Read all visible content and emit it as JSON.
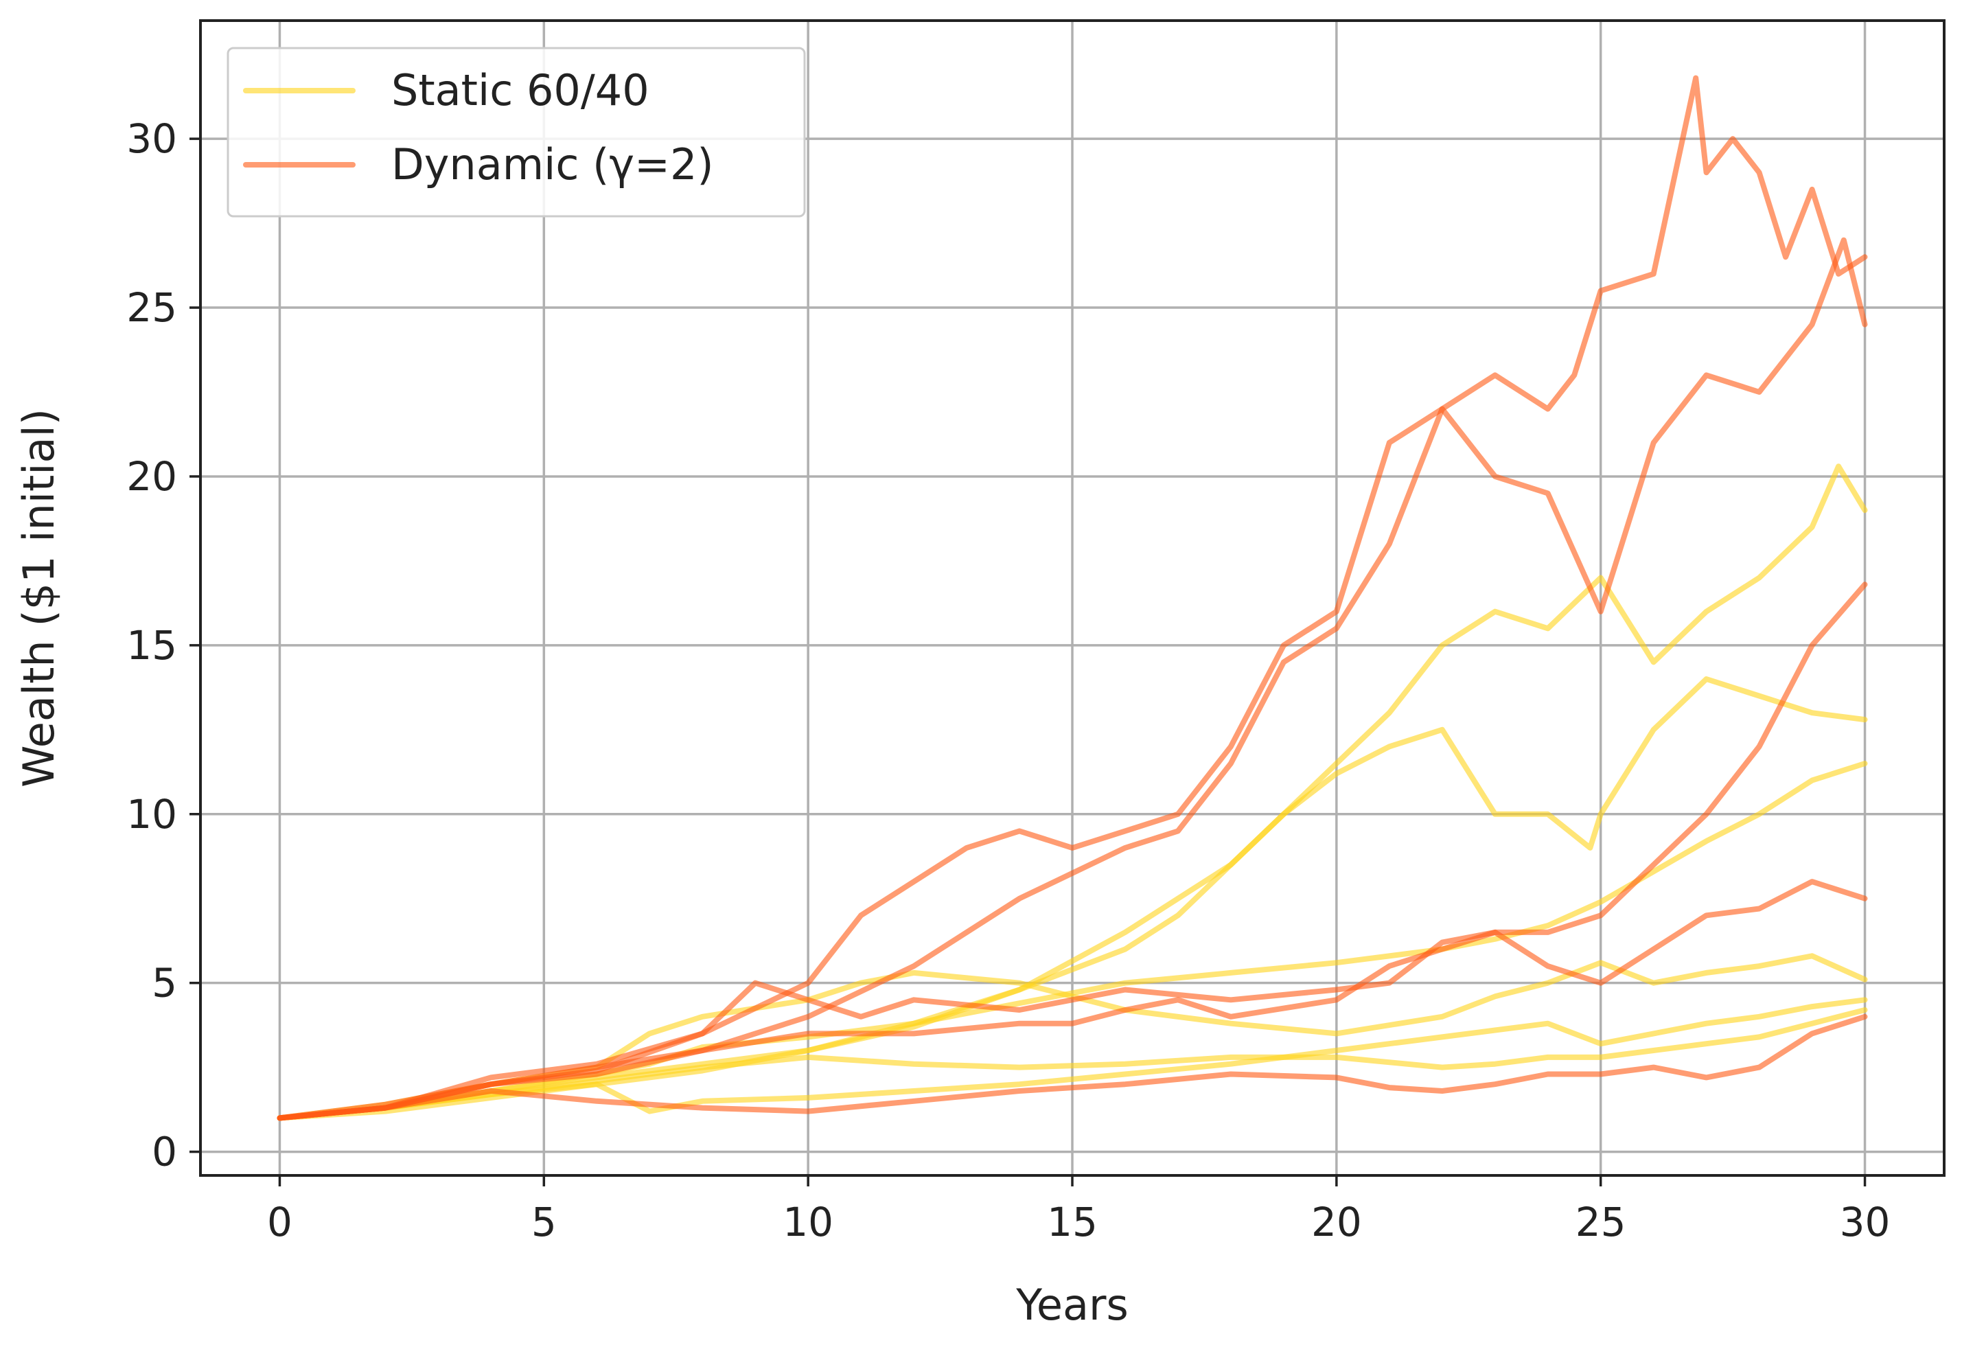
{
  "chart_data": {
    "type": "line",
    "title": "",
    "xlabel": "Years",
    "ylabel": "Wealth ($1 initial)",
    "xlim": [
      -1.5,
      31.5
    ],
    "ylim": [
      -0.7,
      33.5
    ],
    "xticks": [
      0,
      5,
      10,
      15,
      20,
      25,
      30
    ],
    "yticks": [
      0,
      5,
      10,
      15,
      20,
      25,
      30
    ],
    "grid": true,
    "legend_position": "top-left",
    "legend": [
      {
        "label": "Static 60/40",
        "color": "#ffd31a"
      },
      {
        "label": "Dynamic (γ=2)",
        "color": "#ff5a14"
      }
    ],
    "series": [
      {
        "group": 0,
        "color": "#ffd31a",
        "x": [
          0,
          2,
          4,
          6,
          7,
          8,
          10,
          12,
          14,
          16,
          18,
          20,
          22,
          23,
          24,
          25,
          26,
          27,
          28,
          29,
          30
        ],
        "y": [
          1,
          1.3,
          1.8,
          2.3,
          2.6,
          3.1,
          3.4,
          3.8,
          4.4,
          5.0,
          5.3,
          5.6,
          6.0,
          6.3,
          6.7,
          7.4,
          8.3,
          9.2,
          10.0,
          11.0,
          11.5
        ]
      },
      {
        "group": 0,
        "color": "#ffd31a",
        "x": [
          0,
          2,
          4,
          6,
          8,
          10,
          12,
          14,
          16,
          17,
          18,
          19,
          20,
          21,
          22,
          23,
          24,
          24.8,
          25,
          26,
          27,
          28,
          29,
          30
        ],
        "y": [
          1,
          1.2,
          1.6,
          2.0,
          2.4,
          3.0,
          3.8,
          4.8,
          6.0,
          7.0,
          8.5,
          10.0,
          11.2,
          12.0,
          12.5,
          10.0,
          10.0,
          9.0,
          10.0,
          12.5,
          14.0,
          13.5,
          13.0,
          12.8
        ]
      },
      {
        "group": 0,
        "color": "#ffd31a",
        "x": [
          0,
          2,
          4,
          6,
          8,
          10,
          12,
          14,
          16,
          18,
          19,
          20,
          21,
          22,
          23,
          24,
          25,
          26,
          27,
          28,
          29,
          29.5,
          30
        ],
        "y": [
          1,
          1.3,
          1.8,
          2.2,
          2.6,
          3.0,
          3.7,
          4.8,
          6.5,
          8.5,
          10.0,
          11.5,
          13.0,
          15.0,
          16.0,
          15.5,
          17.0,
          14.5,
          16.0,
          17.0,
          18.5,
          20.3,
          19.0
        ]
      },
      {
        "group": 0,
        "color": "#ffd31a",
        "x": [
          0,
          2,
          4,
          6,
          7,
          8,
          10,
          11,
          12,
          14,
          16,
          18,
          20,
          22,
          23,
          24,
          25,
          26,
          27,
          28,
          29,
          30
        ],
        "y": [
          1,
          1.4,
          2.0,
          2.5,
          3.5,
          4.0,
          4.5,
          5.0,
          5.3,
          5.0,
          4.2,
          3.8,
          3.5,
          4.0,
          4.6,
          5.0,
          5.6,
          5.0,
          5.3,
          5.5,
          5.8,
          5.1
        ]
      },
      {
        "group": 0,
        "color": "#ffd31a",
        "x": [
          0,
          2,
          4,
          6,
          7,
          8,
          10,
          12,
          14,
          16,
          18,
          20,
          22,
          23,
          24,
          25,
          26,
          27,
          28,
          29,
          30
        ],
        "y": [
          1,
          1.3,
          1.7,
          2.0,
          1.2,
          1.5,
          1.6,
          1.8,
          2.0,
          2.3,
          2.6,
          3.0,
          3.4,
          3.6,
          3.8,
          3.2,
          3.5,
          3.8,
          4.0,
          4.3,
          4.5
        ]
      },
      {
        "group": 0,
        "color": "#ffd31a",
        "x": [
          0,
          2,
          4,
          6,
          8,
          10,
          12,
          14,
          16,
          18,
          20,
          22,
          23,
          24,
          25,
          26,
          27,
          28,
          29,
          30
        ],
        "y": [
          1,
          1.3,
          1.7,
          2.1,
          2.5,
          2.8,
          2.6,
          2.5,
          2.6,
          2.8,
          2.8,
          2.5,
          2.6,
          2.8,
          2.8,
          3.0,
          3.2,
          3.4,
          3.8,
          4.2
        ]
      },
      {
        "group": 1,
        "color": "#ff5a14",
        "x": [
          0,
          2,
          4,
          6,
          8,
          10,
          11,
          12,
          13,
          14,
          15,
          16,
          17,
          18,
          19,
          20,
          21,
          22,
          23,
          24,
          25,
          26,
          27,
          28,
          29,
          29.6,
          30
        ],
        "y": [
          1,
          1.3,
          2.2,
          2.6,
          3.5,
          5.0,
          7.0,
          8.0,
          9.0,
          9.5,
          9.0,
          9.5,
          10.0,
          12.0,
          15.0,
          16.0,
          21.0,
          22.0,
          20.0,
          19.5,
          16.0,
          21.0,
          23.0,
          22.5,
          24.5,
          27.0,
          24.5
        ]
      },
      {
        "group": 1,
        "color": "#ff5a14",
        "x": [
          0,
          2,
          4,
          6,
          8,
          10,
          12,
          14,
          16,
          17,
          18,
          19,
          20,
          21,
          22,
          23,
          24,
          24.5,
          25,
          26,
          26.8,
          27,
          27.5,
          28,
          28.5,
          29,
          29.5,
          30
        ],
        "y": [
          1,
          1.3,
          2.0,
          2.5,
          3.0,
          4.0,
          5.5,
          7.5,
          9.0,
          9.5,
          11.5,
          14.5,
          15.5,
          18.0,
          22.0,
          23.0,
          22.0,
          23.0,
          25.5,
          26.0,
          31.8,
          29.0,
          30.0,
          29.0,
          26.5,
          28.5,
          26.0,
          26.5
        ]
      },
      {
        "group": 1,
        "color": "#ff5a14",
        "x": [
          0,
          2,
          4,
          6,
          8,
          9,
          10,
          11,
          12,
          14,
          16,
          18,
          20,
          21,
          22,
          23,
          24,
          25,
          26,
          27,
          28,
          29,
          30
        ],
        "y": [
          1,
          1.4,
          2.0,
          2.4,
          3.5,
          5.0,
          4.5,
          4.0,
          4.5,
          4.2,
          4.8,
          4.5,
          4.8,
          5.0,
          6.2,
          6.5,
          6.5,
          7.0,
          8.5,
          10.0,
          12.0,
          15.0,
          16.8
        ]
      },
      {
        "group": 1,
        "color": "#ff5a14",
        "x": [
          0,
          2,
          4,
          6,
          8,
          10,
          12,
          14,
          15,
          16,
          17,
          18,
          20,
          21,
          22,
          23,
          24,
          25,
          26,
          27,
          28,
          29,
          30
        ],
        "y": [
          1,
          1.3,
          2.0,
          2.3,
          3.0,
          3.5,
          3.5,
          3.8,
          3.8,
          4.2,
          4.5,
          4.0,
          4.5,
          5.5,
          6.0,
          6.5,
          5.5,
          5.0,
          6.0,
          7.0,
          7.2,
          8.0,
          7.5
        ]
      },
      {
        "group": 1,
        "color": "#ff5a14",
        "x": [
          0,
          2,
          4,
          6,
          8,
          10,
          12,
          14,
          16,
          18,
          20,
          21,
          22,
          23,
          24,
          25,
          26,
          27,
          28,
          29,
          30
        ],
        "y": [
          1,
          1.3,
          1.8,
          1.5,
          1.3,
          1.2,
          1.5,
          1.8,
          2.0,
          2.3,
          2.2,
          1.9,
          1.8,
          2.0,
          2.3,
          2.3,
          2.5,
          2.2,
          2.5,
          3.5,
          4.0
        ]
      }
    ]
  }
}
